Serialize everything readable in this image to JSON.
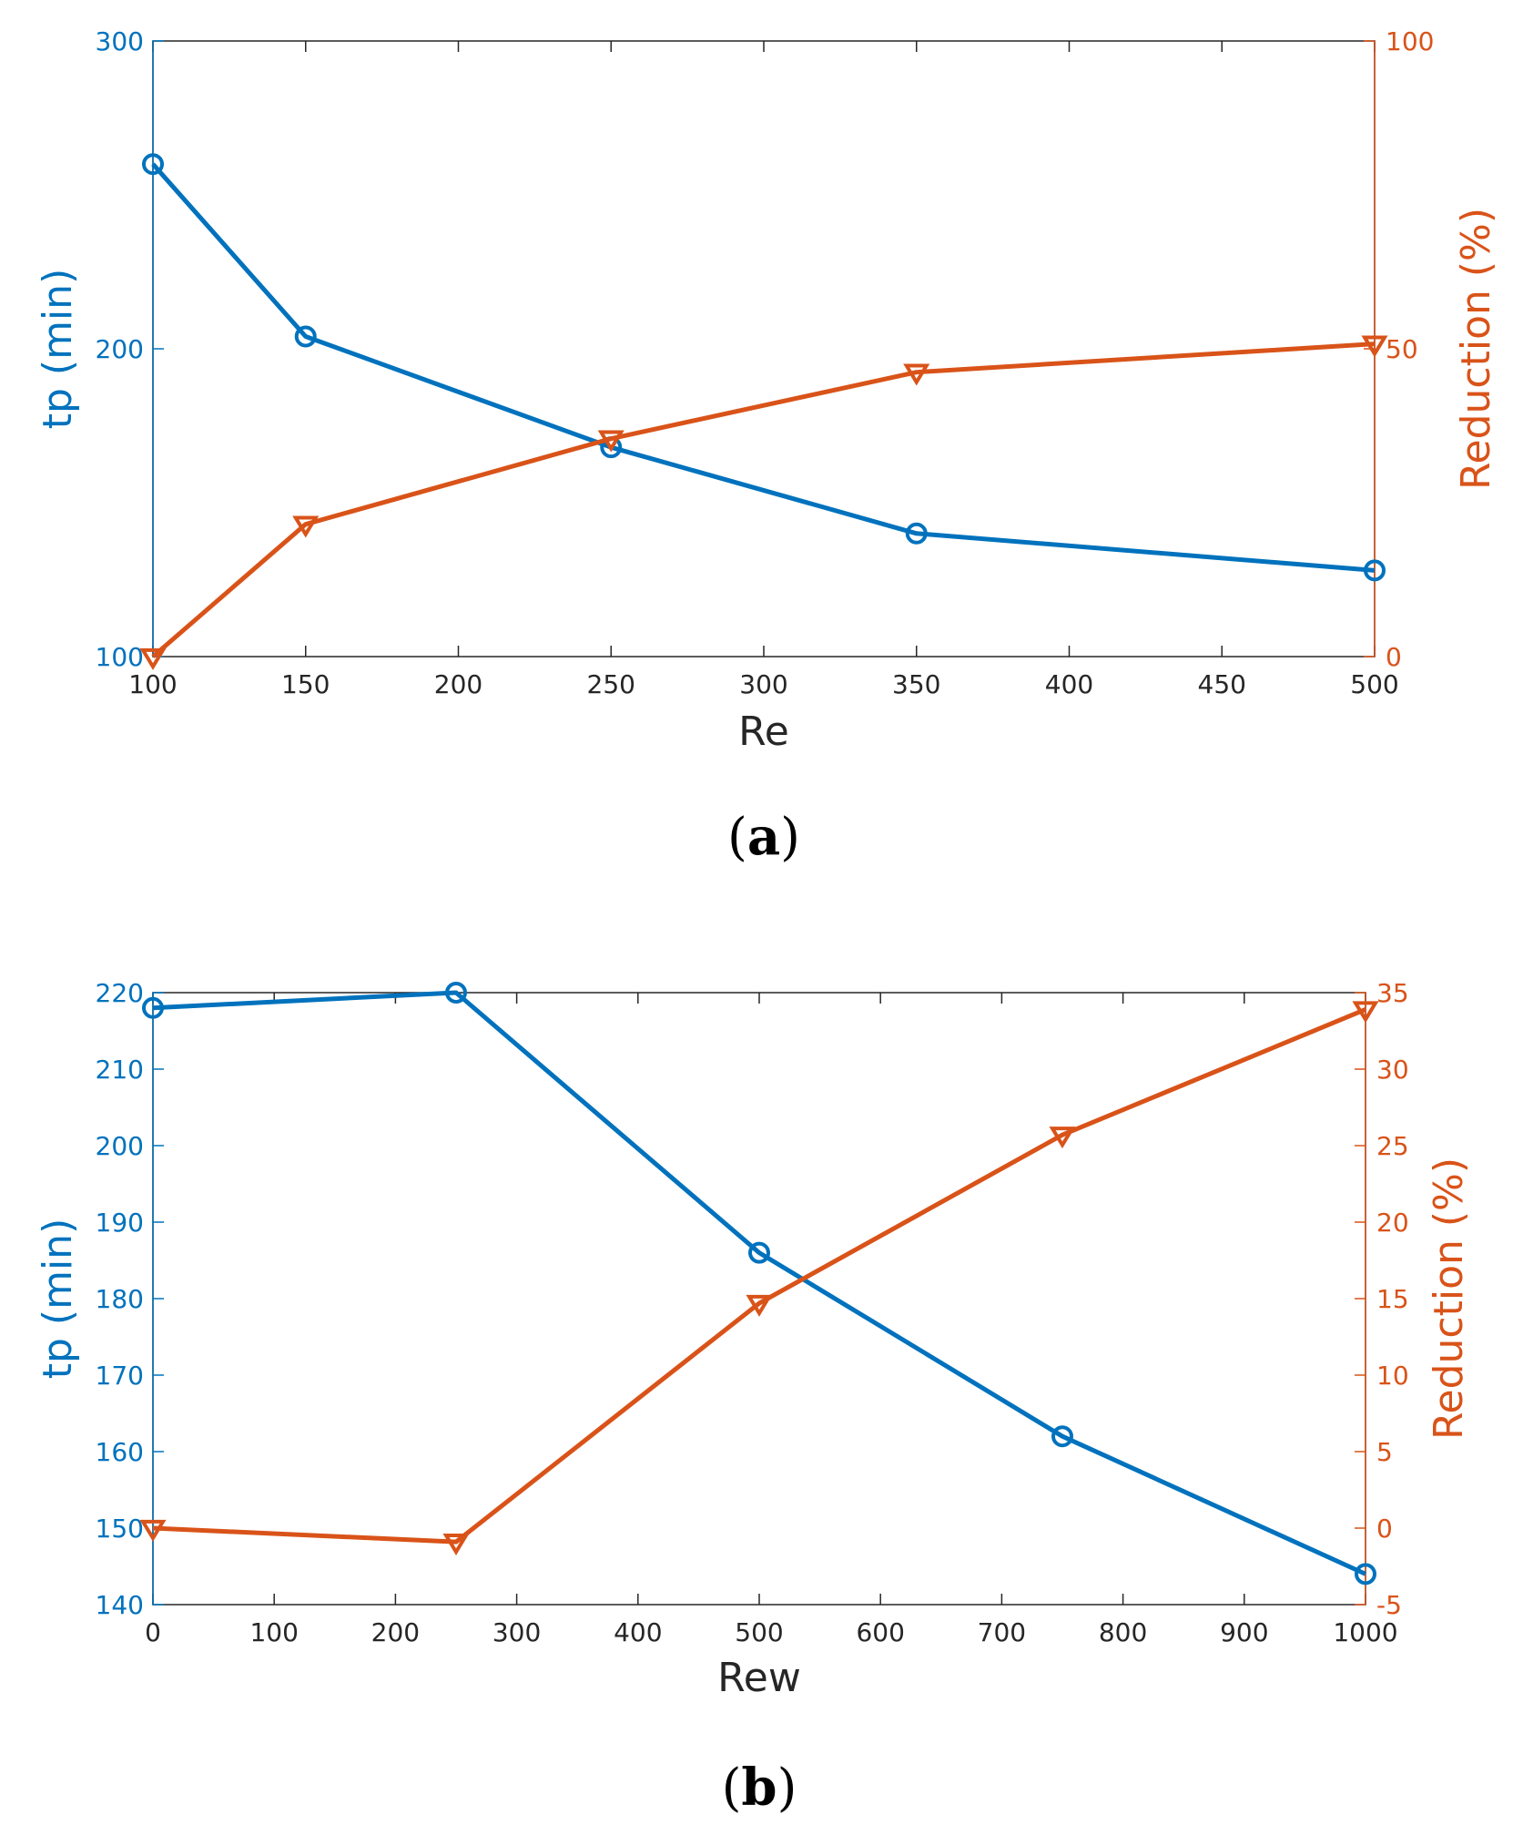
{
  "colors": {
    "left": "#0072BD",
    "right": "#D95319",
    "axis": "#262626",
    "background": "#ffffff"
  },
  "chart_data": [
    {
      "type": "line",
      "caption": {
        "open": "(",
        "letter": "a",
        "close": ")"
      },
      "xlabel": "Re",
      "ylabel_left": "tp (min)",
      "ylabel_right": "Reduction (%)",
      "xlim": [
        100,
        500
      ],
      "xticks": [
        100,
        150,
        200,
        250,
        300,
        350,
        400,
        450,
        500
      ],
      "ylim_left": [
        100,
        300
      ],
      "yticks_left": [
        100,
        200,
        300
      ],
      "ylim_right": [
        0,
        100
      ],
      "yticks_right": [
        0,
        50,
        100
      ],
      "grid": false,
      "series": [
        {
          "axis": "left",
          "marker": "circle",
          "x": [
            100,
            150,
            250,
            350,
            500
          ],
          "values": [
            260,
            204,
            168,
            140,
            128
          ]
        },
        {
          "axis": "right",
          "marker": "triangle-down",
          "x": [
            100,
            150,
            250,
            350,
            500
          ],
          "values": [
            0,
            21.5,
            35.4,
            46.2,
            50.8
          ]
        }
      ]
    },
    {
      "type": "line",
      "caption": {
        "open": "(",
        "letter": "b",
        "close": ")"
      },
      "xlabel": "Rew",
      "ylabel_left": "tp (min)",
      "ylabel_right": "Reduction (%)",
      "xlim": [
        0,
        1000
      ],
      "xticks": [
        0,
        100,
        200,
        300,
        400,
        500,
        600,
        700,
        800,
        900,
        1000
      ],
      "ylim_left": [
        140,
        220
      ],
      "yticks_left": [
        140,
        150,
        160,
        170,
        180,
        190,
        200,
        210,
        220
      ],
      "ylim_right": [
        -5,
        35
      ],
      "yticks_right": [
        -5,
        0,
        5,
        10,
        15,
        20,
        25,
        30,
        35
      ],
      "grid": false,
      "series": [
        {
          "axis": "left",
          "marker": "circle",
          "x": [
            0,
            250,
            500,
            750,
            1000
          ],
          "values": [
            218,
            220,
            186,
            162,
            144
          ]
        },
        {
          "axis": "right",
          "marker": "triangle-down",
          "x": [
            0,
            250,
            500,
            750,
            1000
          ],
          "values": [
            0,
            -0.9,
            14.7,
            25.7,
            33.9
          ]
        }
      ]
    }
  ]
}
